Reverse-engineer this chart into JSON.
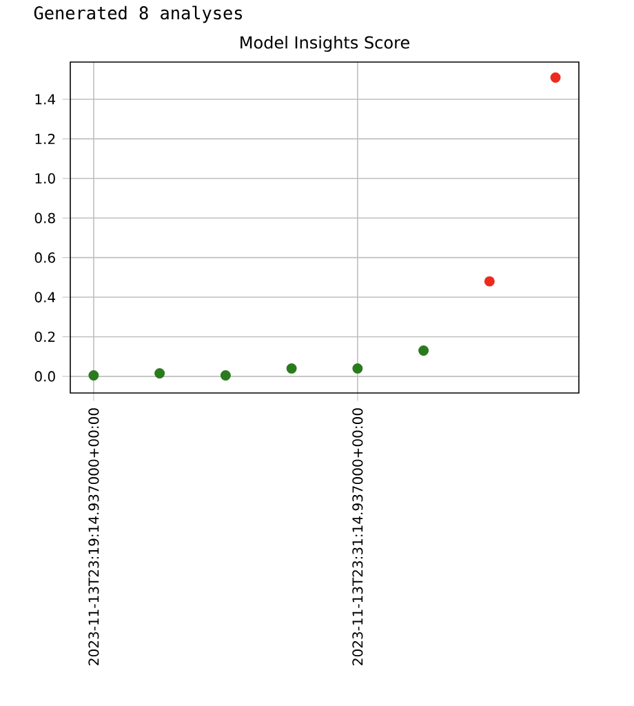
{
  "chart_data": {
    "type": "scatter",
    "title": "Model Insights Score",
    "annotations": [
      "Generated 8 analyses"
    ],
    "categories": [
      "2023-11-13T23:19:14.937000+00:00",
      null,
      null,
      null,
      "2023-11-13T23:31:14.937000+00:00",
      null,
      null,
      null
    ],
    "values": [
      0.005,
      0.015,
      0.005,
      0.04,
      0.04,
      0.13,
      0.48,
      1.51
    ],
    "colors": [
      "#2a7a1e",
      "#2a7a1e",
      "#2a7a1e",
      "#2a7a1e",
      "#2a7a1e",
      "#2a7a1e",
      "#ee2a1e",
      "#ee2a1e"
    ],
    "ylim": [
      -0.084,
      1.588
    ],
    "yticks": [
      {
        "value": 0.0,
        "label": "0.0"
      },
      {
        "value": 0.2,
        "label": "0.2"
      },
      {
        "value": 0.4,
        "label": "0.4"
      },
      {
        "value": 0.6,
        "label": "0.6"
      },
      {
        "value": 0.8,
        "label": "0.8"
      },
      {
        "value": 1.0,
        "label": "1.0"
      },
      {
        "value": 1.2,
        "label": "1.2"
      },
      {
        "value": 1.4,
        "label": "1.4"
      }
    ],
    "grid": true,
    "legend": false
  }
}
